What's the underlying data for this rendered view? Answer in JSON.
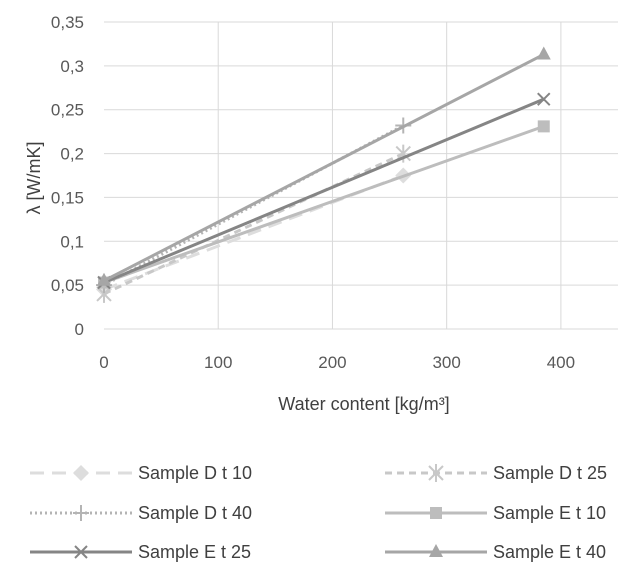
{
  "chart_data": {
    "type": "line",
    "title": "",
    "xlabel": "Water content [kg/m³]",
    "ylabel": "λ [W/mK]",
    "xlim": [
      0,
      450
    ],
    "ylim": [
      0,
      0.35
    ],
    "x_ticks": [
      "0",
      "100",
      "200",
      "300",
      "400"
    ],
    "y_ticks": [
      "0",
      "0,05",
      "0,1",
      "0,15",
      "0,2",
      "0,25",
      "0,3",
      "0,35"
    ],
    "grid": true,
    "legend_position": "bottom",
    "series": [
      {
        "name": "Sample D t 10",
        "color": "#dddddd",
        "dash": "long-dash",
        "marker": "diamond",
        "x": [
          0,
          262
        ],
        "y": [
          0.045,
          0.175
        ]
      },
      {
        "name": "Sample D t 25",
        "color": "#c8c8c8",
        "dash": "dash",
        "marker": "asterisk",
        "x": [
          0,
          262
        ],
        "y": [
          0.04,
          0.2
        ]
      },
      {
        "name": "Sample D t 40",
        "color": "#b4b4b4",
        "dash": "dot",
        "marker": "plus",
        "x": [
          0,
          262
        ],
        "y": [
          0.05,
          0.232
        ]
      },
      {
        "name": "Sample E t 10",
        "color": "#bdbdbd",
        "dash": "solid",
        "marker": "square",
        "x": [
          0,
          385
        ],
        "y": [
          0.053,
          0.231
        ]
      },
      {
        "name": "Sample E t 25",
        "color": "#858585",
        "dash": "solid",
        "marker": "x",
        "x": [
          0,
          385
        ],
        "y": [
          0.053,
          0.262
        ]
      },
      {
        "name": "Sample E t 40",
        "color": "#a6a6a6",
        "dash": "solid",
        "marker": "triangle",
        "x": [
          0,
          385
        ],
        "y": [
          0.055,
          0.313
        ]
      }
    ]
  }
}
